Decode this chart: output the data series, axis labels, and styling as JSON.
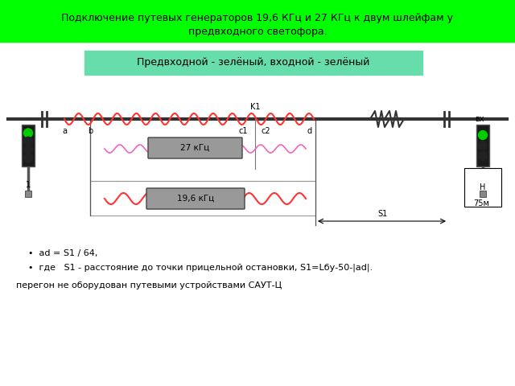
{
  "title_line1": "Подключение путевых генераторов 19,6 КГц и 27 КГц к двум шлейфам у",
  "title_line2": "предвходного светофора.",
  "title_bg": "#00ff00",
  "subtitle": "Предвходной - зелёный, входной - зелёный",
  "subtitle_bg": "#66ddaa",
  "label_a": "a",
  "label_b": "b",
  "label_c1": "c1",
  "label_c2": "c2",
  "label_d": "d",
  "label_K1": "K1",
  "label_27": "27 кГц",
  "label_196": "19,6 кГц",
  "label_S1": "S1",
  "label_75m": "75м",
  "label_vx": "вх",
  "label_H": "H",
  "label_1": "1",
  "bullet1": "ad = S1 / 64,",
  "bullet2": "где   S1 - расстояние до точки прицельной остановки, S1=Lбу-50-|ad|.",
  "bullet3": "перегон не оборудован путевыми устройствами САУТ-Ц",
  "track_color": "#333333",
  "wave_color_red": "#ff3333",
  "wave_color_pink": "#ee66bb",
  "gen_box_color": "#999999",
  "bg_color": "#ffffff"
}
